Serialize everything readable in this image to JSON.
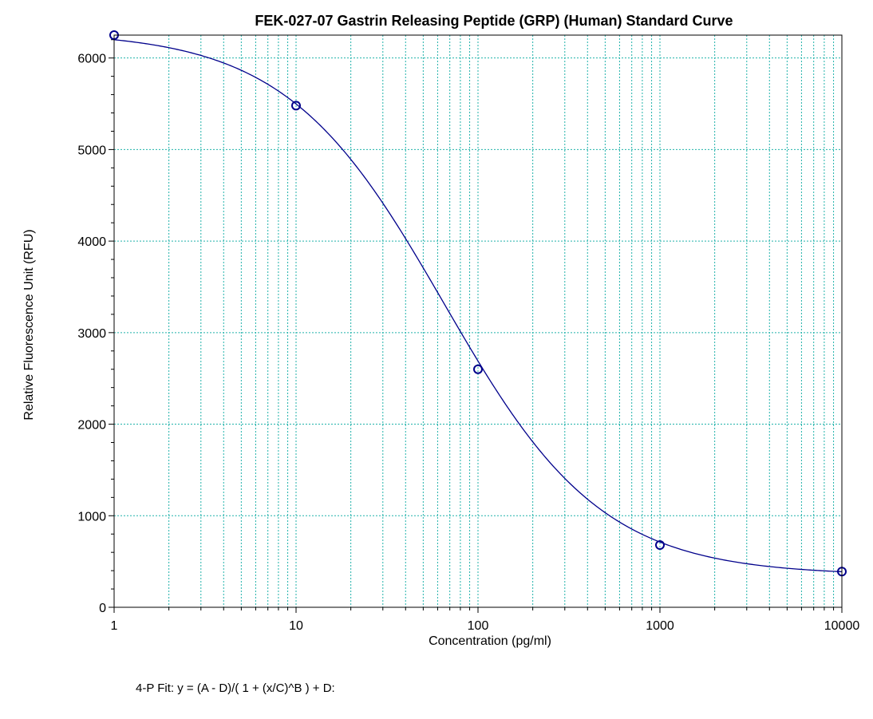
{
  "chart_data": {
    "type": "scatter",
    "title": "FEK-027-07 Gastrin Releasing Peptide (GRP) (Human) Standard Curve",
    "xlabel": "Concentration (pg/ml)",
    "ylabel": "Relative Fluorescence Unit (RFU)",
    "xscale": "log",
    "xlim": [
      1,
      10000
    ],
    "ylim": [
      0,
      6250
    ],
    "xticks": [
      1,
      10,
      100,
      1000,
      10000
    ],
    "xtick_labels": [
      "1",
      "10",
      "100",
      "1000",
      "10000"
    ],
    "yticks": [
      0,
      1000,
      2000,
      3000,
      4000,
      5000,
      6000
    ],
    "ytick_labels": [
      "0",
      "1000",
      "2000",
      "3000",
      "4000",
      "5000",
      "6000"
    ],
    "grid": true,
    "series": [
      {
        "x": [
          1,
          10,
          100,
          1000,
          10000
        ],
        "y": [
          6250,
          5480,
          2600,
          680,
          390
        ],
        "color": "#00008b",
        "marker": "circle"
      }
    ],
    "fit": {
      "model": "4-P Fit",
      "equation": "4-P Fit: y = (A - D)/( 1 + (x/C)^B ) + D:",
      "A": 6290,
      "B": 1.0,
      "C": 65,
      "D": 350,
      "color": "#00008b"
    },
    "colors": {
      "grid": "#20b2aa",
      "axis": "#000000",
      "curve": "#00008b"
    }
  }
}
